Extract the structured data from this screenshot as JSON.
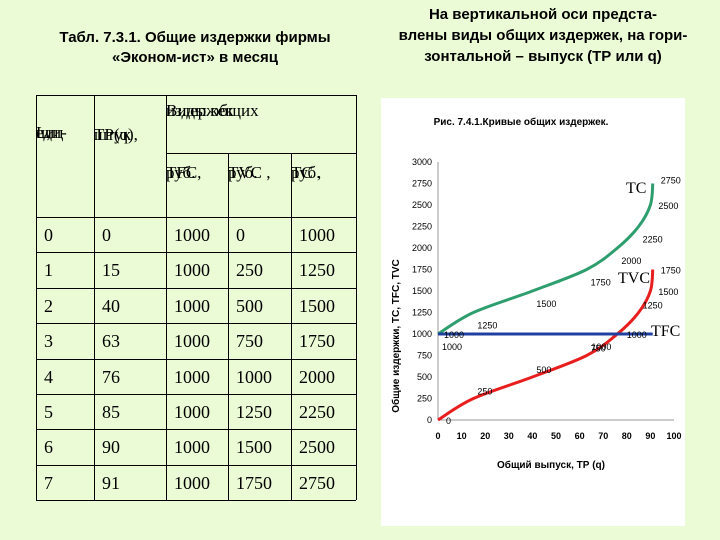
{
  "table_title_line1": "Табл. 7.3.1. Общие издержки фирмы",
  "table_title_line2": "«Эконом-ист» в месяц",
  "desc_lines": [
    "На вертикальной оси предста-",
    "влены виды общих издержек, на гори-",
    "зонтальной – выпуск (ТР или q)"
  ],
  "table": {
    "h_L": [
      "L,",
      "еди-",
      "ниц"
    ],
    "h_TP": [
      "TP(q),",
      "штук"
    ],
    "h_group": [
      "Виды общих",
      "издержек"
    ],
    "h_TFC": [
      "TFC,",
      "руб."
    ],
    "h_TVC": [
      "TVC ,",
      "руб."
    ],
    "h_TC": [
      "TC ,",
      "руб."
    ],
    "rows": [
      [
        "0",
        "0",
        "1000",
        "0",
        "1000"
      ],
      [
        "1",
        "15",
        "1000",
        "250",
        "1250"
      ],
      [
        "2",
        "40",
        "1000",
        "500",
        "1500"
      ],
      [
        "3",
        "63",
        "1000",
        "750",
        "1750"
      ],
      [
        "4",
        "76",
        "1000",
        "1000",
        "2000"
      ],
      [
        "5",
        "85",
        "1000",
        "1250",
        "2250"
      ],
      [
        "6",
        "90",
        "1000",
        "1500",
        "2500"
      ],
      [
        "7",
        "91",
        "1000",
        "1750",
        "2750"
      ]
    ]
  },
  "chart_data": {
    "type": "line",
    "title": "Рис. 7.4.1.Кривые общих издержек.",
    "xlabel": "Общий выпуск, ТР (q)",
    "ylabel": "Общие издержки, ТС, TFC, TVC",
    "xlim": [
      0,
      100
    ],
    "ylim": [
      0,
      3000
    ],
    "xticks": [
      "0",
      "10",
      "20",
      "30",
      "40",
      "50",
      "60",
      "70",
      "80",
      "90",
      "100"
    ],
    "yticks": [
      "0",
      "250",
      "500",
      "750",
      "1000",
      "1250",
      "1500",
      "1750",
      "2000",
      "2250",
      "2500",
      "2750",
      "3000"
    ],
    "series": [
      {
        "name": "TC",
        "color": "#2e9e6e",
        "x": [
          0,
          15,
          40,
          63,
          76,
          85,
          90,
          91
        ],
        "y": [
          1000,
          1250,
          1500,
          1750,
          2000,
          2250,
          2500,
          2750
        ]
      },
      {
        "name": "TVC",
        "color": "#e81e1e",
        "x": [
          0,
          15,
          40,
          63,
          76,
          85,
          90,
          91
        ],
        "y": [
          0,
          250,
          500,
          750,
          1000,
          1250,
          1500,
          1750
        ]
      },
      {
        "name": "TFC",
        "color": "#2040a0",
        "x": [
          0,
          91
        ],
        "y": [
          1000,
          1000
        ]
      }
    ],
    "point_labels": {
      "TC": [
        {
          "x": 0,
          "y": 1000,
          "text": "1000"
        },
        {
          "x": 15,
          "y": 1250,
          "text": "1250"
        },
        {
          "x": 40,
          "y": 1500,
          "text": "1500"
        },
        {
          "x": 63,
          "y": 1750,
          "text": "1750"
        },
        {
          "x": 76,
          "y": 2000,
          "text": "2000"
        },
        {
          "x": 85,
          "y": 2250,
          "text": "2250"
        },
        {
          "x": 90,
          "y": 2500,
          "text": "2500"
        },
        {
          "x": 91,
          "y": 2750,
          "text": "2750"
        }
      ],
      "TVC": [
        {
          "x": 0,
          "y": 0,
          "text": "0"
        },
        {
          "x": 15,
          "y": 250,
          "text": "250"
        },
        {
          "x": 40,
          "y": 500,
          "text": "500"
        },
        {
          "x": 63,
          "y": 750,
          "text": "750"
        },
        {
          "x": 76,
          "y": 1000,
          "text": "1000"
        },
        {
          "x": 85,
          "y": 1250,
          "text": "1250"
        },
        {
          "x": 90,
          "y": 1500,
          "text": "1500"
        },
        {
          "x": 91,
          "y": 1750,
          "text": "1750"
        }
      ],
      "TFC": [
        {
          "x": 0,
          "y": 1000,
          "text": "1000"
        },
        {
          "x": 91,
          "y": 1000,
          "text": "1000"
        }
      ]
    }
  },
  "curve_tags": {
    "tc": "TC",
    "tvc": "TVC",
    "tfc": "TFC"
  }
}
